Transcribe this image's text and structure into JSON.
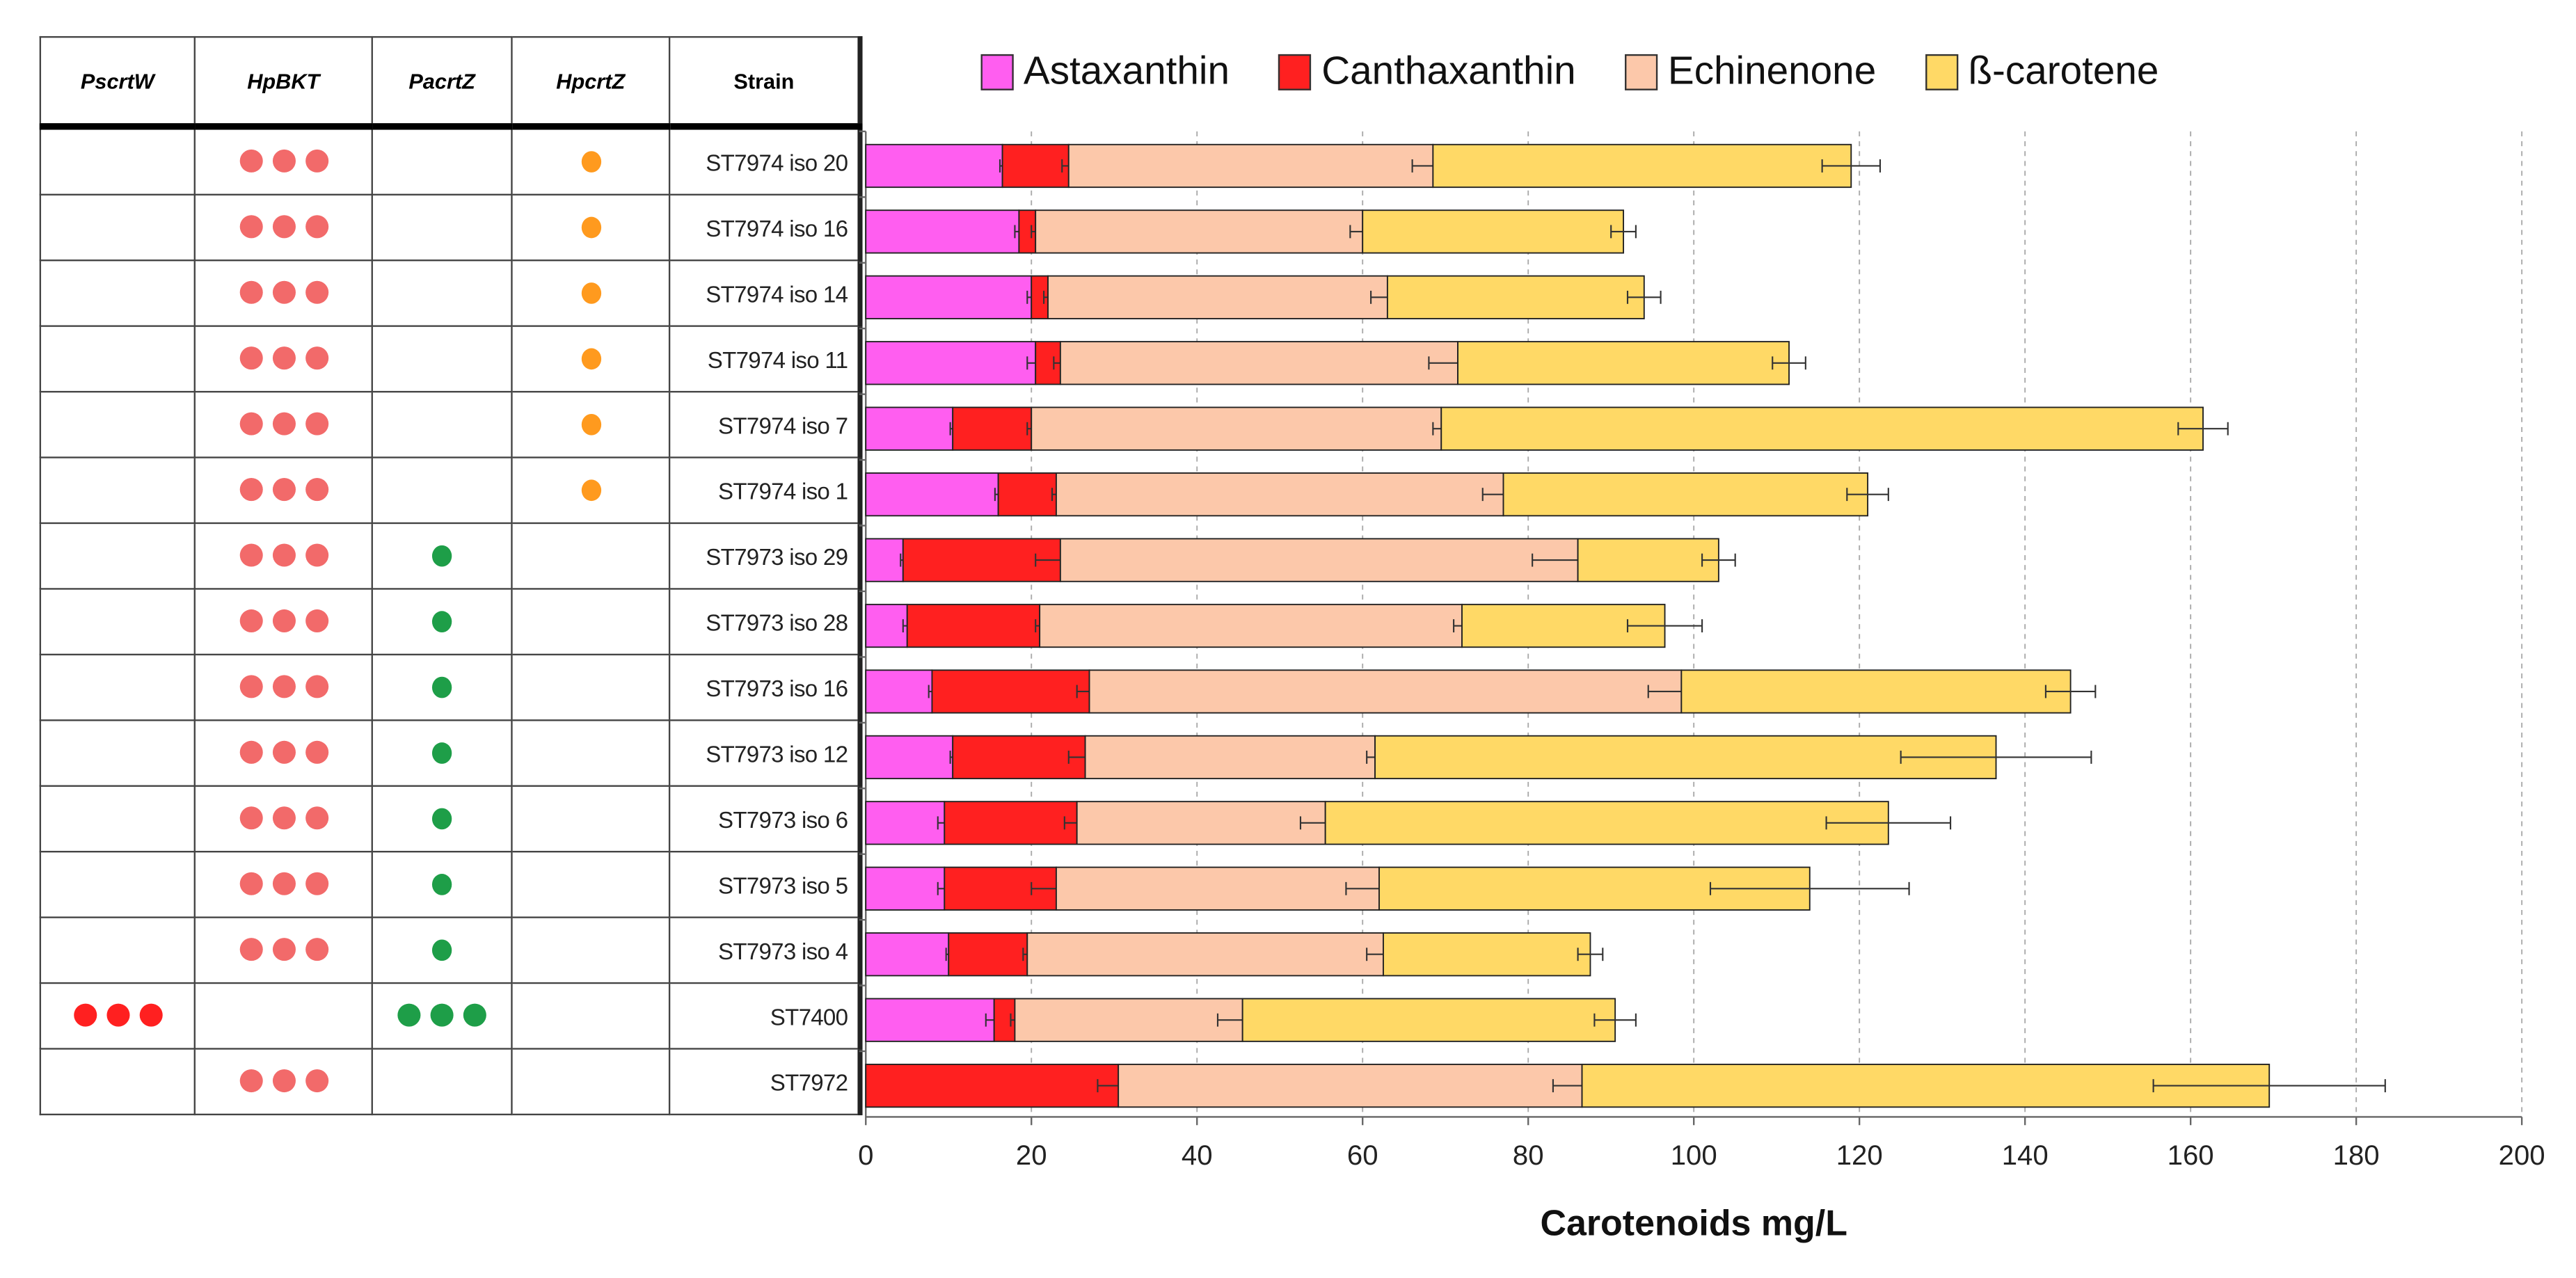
{
  "table": {
    "headers": [
      "PscrtW",
      "HpBKT",
      "PacrtZ",
      "HpcrtZ",
      "Strain"
    ],
    "dot_colors": {
      "PscrtW": "#ff2020",
      "HpBKT": "#f26a6a",
      "PacrtZ": "#1e9e48",
      "HpcrtZ": "#ff9a1e"
    },
    "rows": [
      {
        "strain": "ST7974 iso 20",
        "PscrtW": 0,
        "HpBKT": 3,
        "PacrtZ": 0,
        "HpcrtZ": 1
      },
      {
        "strain": "ST7974 iso 16",
        "PscrtW": 0,
        "HpBKT": 3,
        "PacrtZ": 0,
        "HpcrtZ": 1
      },
      {
        "strain": "ST7974 iso 14",
        "PscrtW": 0,
        "HpBKT": 3,
        "PacrtZ": 0,
        "HpcrtZ": 1
      },
      {
        "strain": "ST7974 iso 11",
        "PscrtW": 0,
        "HpBKT": 3,
        "PacrtZ": 0,
        "HpcrtZ": 1
      },
      {
        "strain": "ST7974 iso 7",
        "PscrtW": 0,
        "HpBKT": 3,
        "PacrtZ": 0,
        "HpcrtZ": 1
      },
      {
        "strain": "ST7974 iso 1",
        "PscrtW": 0,
        "HpBKT": 3,
        "PacrtZ": 0,
        "HpcrtZ": 1
      },
      {
        "strain": "ST7973 iso 29",
        "PscrtW": 0,
        "HpBKT": 3,
        "PacrtZ": 1,
        "HpcrtZ": 0
      },
      {
        "strain": "ST7973 iso 28",
        "PscrtW": 0,
        "HpBKT": 3,
        "PacrtZ": 1,
        "HpcrtZ": 0
      },
      {
        "strain": "ST7973 iso 16",
        "PscrtW": 0,
        "HpBKT": 3,
        "PacrtZ": 1,
        "HpcrtZ": 0
      },
      {
        "strain": "ST7973 iso 12",
        "PscrtW": 0,
        "HpBKT": 3,
        "PacrtZ": 1,
        "HpcrtZ": 0
      },
      {
        "strain": "ST7973 iso 6",
        "PscrtW": 0,
        "HpBKT": 3,
        "PacrtZ": 1,
        "HpcrtZ": 0
      },
      {
        "strain": "ST7973 iso 5",
        "PscrtW": 0,
        "HpBKT": 3,
        "PacrtZ": 1,
        "HpcrtZ": 0
      },
      {
        "strain": "ST7973 iso 4",
        "PscrtW": 0,
        "HpBKT": 3,
        "PacrtZ": 1,
        "HpcrtZ": 0
      },
      {
        "strain": "ST7400",
        "PscrtW": 3,
        "HpBKT": 0,
        "PacrtZ": 3,
        "HpcrtZ": 0
      },
      {
        "strain": "ST7972",
        "PscrtW": 0,
        "HpBKT": 3,
        "PacrtZ": 0,
        "HpcrtZ": 0
      }
    ]
  },
  "chart_data": {
    "type": "bar",
    "orientation": "horizontal",
    "stacked": true,
    "title": "",
    "xlabel": "Carotenoids mg/L",
    "ylabel": "",
    "xlim": [
      0,
      200
    ],
    "xticks": [
      0,
      20,
      40,
      60,
      80,
      100,
      120,
      140,
      160,
      180,
      200
    ],
    "grid": "vertical dashed",
    "legend_position": "top",
    "categories": [
      "ST7974 iso 20",
      "ST7974 iso 16",
      "ST7974 iso 14",
      "ST7974 iso 11",
      "ST7974 iso 7",
      "ST7974 iso 1",
      "ST7973 iso 29",
      "ST7973 iso 28",
      "ST7973 iso 16",
      "ST7973 iso 12",
      "ST7973 iso 6",
      "ST7973 iso 5",
      "ST7973 iso 4",
      "ST7400",
      "ST7972"
    ],
    "series": [
      {
        "name": "Astaxanthin",
        "color": "#ff5ef0",
        "values": [
          16.5,
          18.5,
          20,
          20.5,
          10.5,
          16,
          4.5,
          5,
          8,
          10.5,
          9.5,
          9.5,
          10,
          15.5,
          0
        ],
        "error": [
          0.3,
          0.5,
          0.5,
          1,
          0.3,
          0.4,
          0.3,
          0.5,
          0.4,
          0.3,
          0.8,
          0.8,
          0.3,
          1,
          0
        ]
      },
      {
        "name": "Canthaxanthin",
        "color": "#ff2020",
        "values": [
          8,
          2,
          2,
          3,
          9.5,
          7,
          19,
          16,
          19,
          16,
          16,
          13.5,
          9.5,
          2.5,
          30.5
        ],
        "error": [
          0.8,
          0.5,
          0.5,
          0.8,
          0.5,
          0.5,
          3,
          0.5,
          1.5,
          2,
          1.5,
          3,
          0.5,
          0.5,
          2.5
        ]
      },
      {
        "name": "Echinenone",
        "color": "#fcc8aa",
        "values": [
          44,
          39.5,
          41,
          48,
          49.5,
          54,
          62.5,
          51,
          71.5,
          35,
          30,
          39,
          43,
          27.5,
          56
        ],
        "error": [
          2.5,
          1.5,
          2,
          3.5,
          1,
          2.5,
          5.5,
          1,
          4,
          1,
          3,
          4,
          2,
          3,
          3.5
        ]
      },
      {
        "name": "ß-carotene",
        "color": "#ffd966",
        "values": [
          50.5,
          31.5,
          31,
          40,
          92,
          44,
          17,
          24.5,
          47,
          75,
          68,
          52,
          25,
          45,
          83
        ],
        "error": [
          3.5,
          1.5,
          2,
          2,
          3,
          2.5,
          2,
          4.5,
          3,
          11.5,
          7.5,
          12,
          1.5,
          2.5,
          14
        ]
      }
    ]
  }
}
